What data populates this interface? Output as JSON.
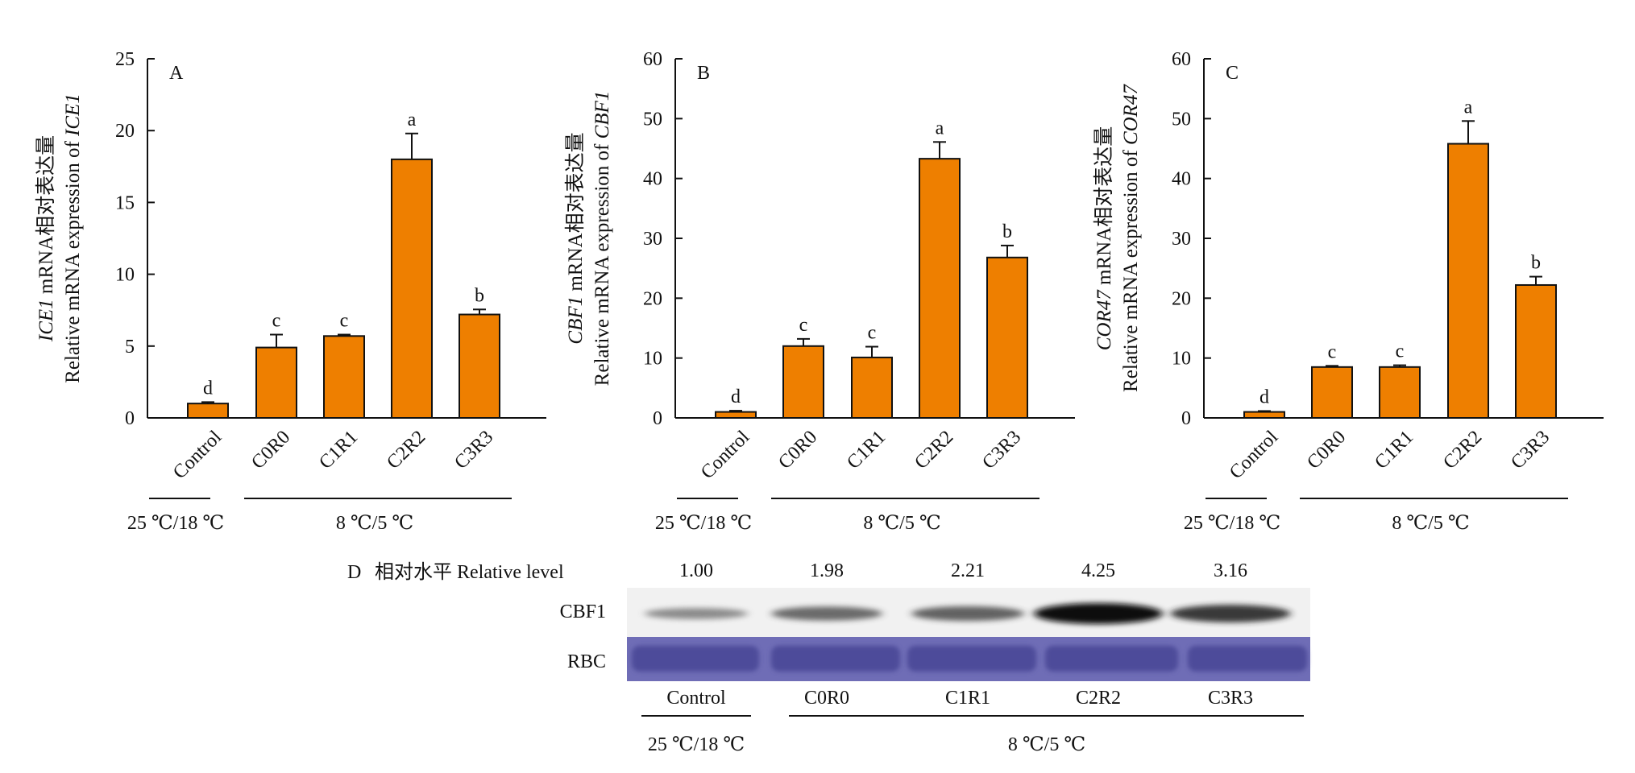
{
  "chart_data": [
    {
      "panel": "A",
      "type": "bar",
      "categories": [
        "Control",
        "C0R0",
        "C1R1",
        "C2R2",
        "C3R3"
      ],
      "values": [
        1.0,
        4.9,
        5.7,
        18.0,
        7.2
      ],
      "errors": [
        0.1,
        0.9,
        0.1,
        1.8,
        0.35
      ],
      "letters": [
        "d",
        "c",
        "c",
        "a",
        "b"
      ],
      "ylabel_line1_italic": "ICE1",
      "ylabel_line1_rest": " mRNA相对表达量",
      "ylabel_line2_prefix": "Relative mRNA expression of ",
      "ylabel_line2_italic": "ICE1",
      "ylim": [
        0,
        25
      ],
      "yticks": [
        0,
        5,
        10,
        15,
        20,
        25
      ],
      "group_labels": [
        "25 ℃/18 ℃",
        "8 ℃/5 ℃"
      ],
      "bar_color": "#EE7F00"
    },
    {
      "panel": "B",
      "type": "bar",
      "categories": [
        "Control",
        "C0R0",
        "C1R1",
        "C2R2",
        "C3R3"
      ],
      "values": [
        1.0,
        12.0,
        10.1,
        43.3,
        26.8
      ],
      "errors": [
        0.2,
        1.2,
        1.8,
        2.8,
        2.0
      ],
      "letters": [
        "d",
        "c",
        "c",
        "a",
        "b"
      ],
      "ylabel_line1_italic": "CBF1",
      "ylabel_line1_rest": " mRNA相对表达量",
      "ylabel_line2_prefix": "Relative mRNA expression of ",
      "ylabel_line2_italic": "CBF1",
      "ylim": [
        0,
        60
      ],
      "yticks": [
        0,
        10,
        20,
        30,
        40,
        50,
        60
      ],
      "group_labels": [
        "25 ℃/18 ℃",
        "8 ℃/5 ℃"
      ],
      "bar_color": "#EE7F00"
    },
    {
      "panel": "C",
      "type": "bar",
      "categories": [
        "Control",
        "C0R0",
        "C1R1",
        "C2R2",
        "C3R3"
      ],
      "values": [
        1.0,
        8.5,
        8.5,
        45.8,
        22.2
      ],
      "errors": [
        0.15,
        0.2,
        0.3,
        3.8,
        1.4
      ],
      "letters": [
        "d",
        "c",
        "c",
        "a",
        "b"
      ],
      "ylabel_line1_italic": "COR47",
      "ylabel_line1_rest": " mRNA相对表达量",
      "ylabel_line2_prefix": "Relative mRNA expression of ",
      "ylabel_line2_italic": "COR47",
      "ylim": [
        0,
        60
      ],
      "yticks": [
        0,
        10,
        20,
        30,
        40,
        50,
        60
      ],
      "group_labels": [
        "25 ℃/18 ℃",
        "8 ℃/5 ℃"
      ],
      "bar_color": "#EE7F00"
    }
  ],
  "blot": {
    "panel": "D",
    "header_label": "相对水平 Relative level",
    "relative_levels": [
      "1.00",
      "1.98",
      "2.21",
      "4.25",
      "3.16"
    ],
    "band_intensity": [
      1.0,
      1.98,
      2.21,
      4.25,
      3.16
    ],
    "row_labels": [
      "CBF1",
      "RBC"
    ],
    "lane_labels": [
      "Control",
      "C0R0",
      "C1R1",
      "C2R2",
      "C3R3"
    ],
    "group_labels": [
      "25 ℃/18 ℃",
      "8 ℃/5 ℃"
    ],
    "rbc_color": "#6F6DB6"
  }
}
